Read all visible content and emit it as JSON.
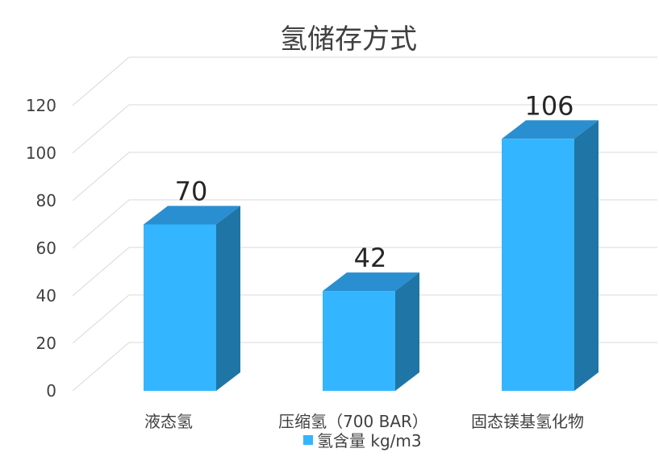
{
  "chart_data": {
    "type": "bar",
    "title": "氢储存方式",
    "categories": [
      "液态氢",
      "压缩氢（700 BAR）",
      "固态镁基氢化物"
    ],
    "series": [
      {
        "name": "氢含量 kg/m3",
        "values": [
          70,
          42,
          106
        ]
      }
    ],
    "ylim": [
      0,
      120
    ],
    "yticks": [
      0,
      20,
      40,
      60,
      80,
      100,
      120
    ],
    "grid": true,
    "legend": "bottom",
    "colors": {
      "front": "#33b5ff",
      "top": "#2a8fd0",
      "side": "#1f75a6",
      "grid": "#d9d9d9",
      "text": "#404040"
    }
  }
}
